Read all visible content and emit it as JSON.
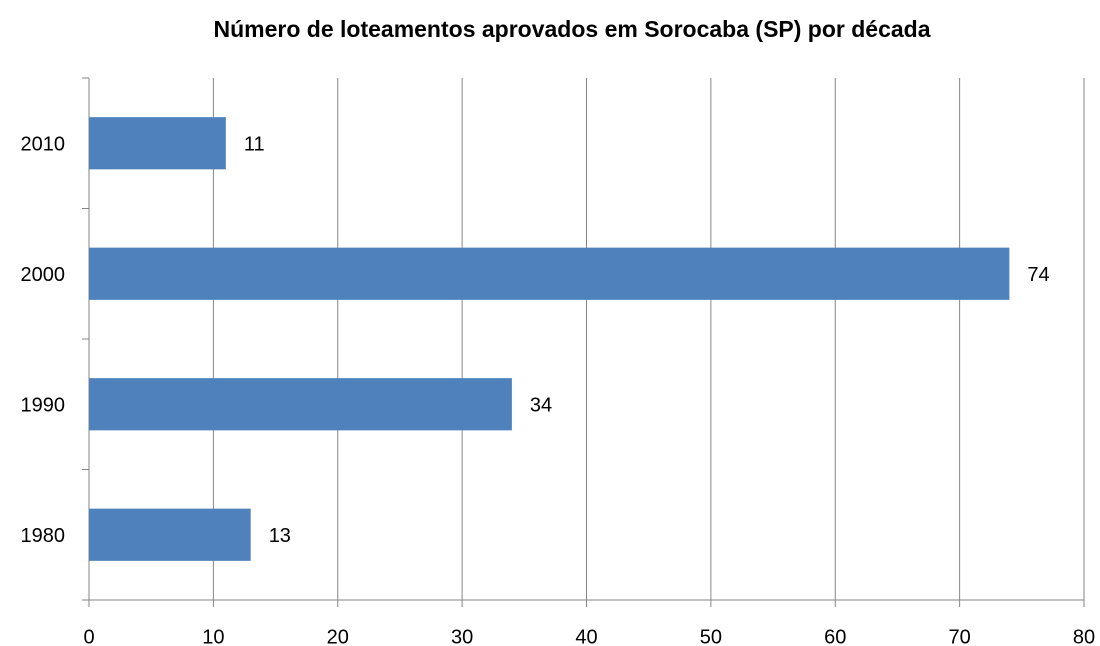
{
  "chart_data": {
    "type": "bar",
    "orientation": "horizontal",
    "title": "Número de loteamentos aprovados em Sorocaba (SP) por década",
    "categories": [
      "1980",
      "1990",
      "2000",
      "2010"
    ],
    "values": [
      13,
      34,
      74,
      11
    ],
    "color": "#4f81bd",
    "xlim": [
      0,
      80
    ],
    "xticks": [
      0,
      10,
      20,
      30,
      40,
      50,
      60,
      70,
      80
    ],
    "grid": true
  }
}
